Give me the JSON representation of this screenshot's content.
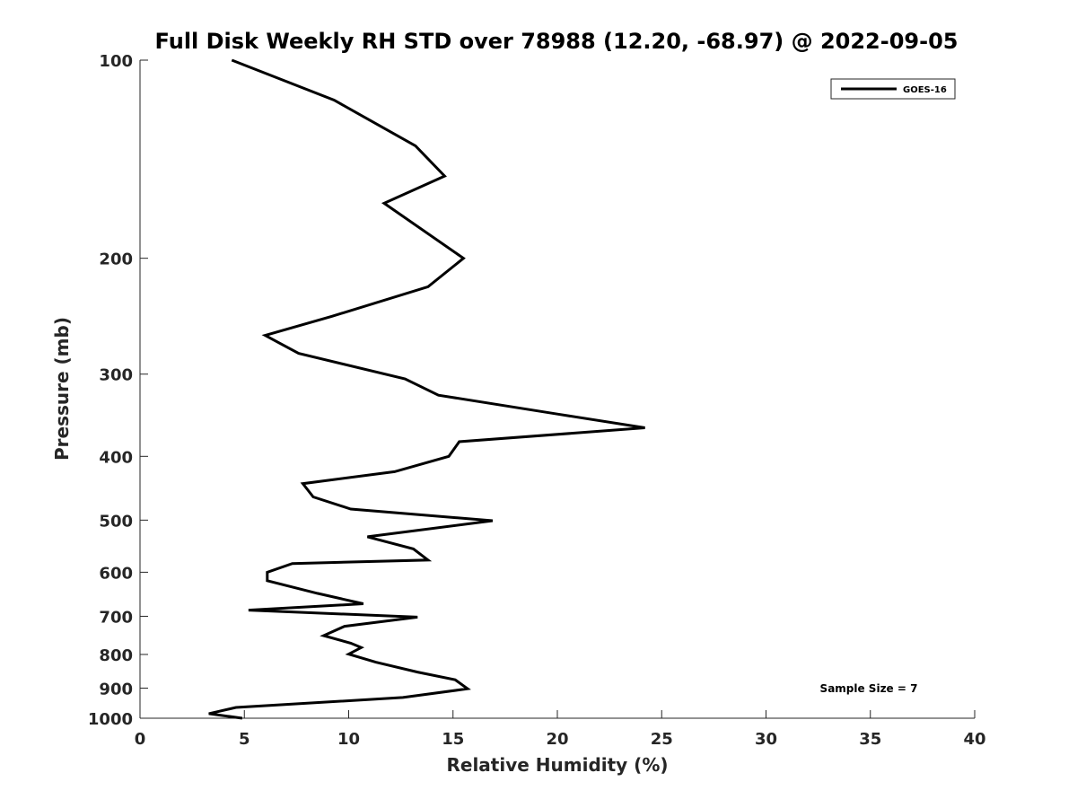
{
  "chart_data": {
    "type": "line",
    "title": "Full Disk Weekly RH STD over 78988 (12.20, -68.97) @ 2022-09-05",
    "xlabel": "Relative Humidity (%)",
    "ylabel": "Pressure (mb)",
    "xlim": [
      0,
      40
    ],
    "ylim": [
      100,
      1000
    ],
    "yscale": "log",
    "y_reversed": true,
    "grid": false,
    "legend_position": "top-right",
    "x_ticks": [
      "0",
      "5",
      "10",
      "15",
      "20",
      "25",
      "30",
      "35",
      "40"
    ],
    "y_ticks": [
      "100",
      "200",
      "300",
      "400",
      "500",
      "600",
      "700",
      "800",
      "900",
      "1000"
    ],
    "annotation": "Sample Size = 7",
    "series": [
      {
        "name": "GOES-16",
        "color": "#000000",
        "x": [
          4.4,
          9.3,
          13.2,
          14.6,
          11.7,
          15.5,
          13.8,
          9.2,
          6.0,
          7.6,
          12.7,
          14.3,
          20.0,
          24.2,
          15.3,
          14.8,
          12.2,
          7.8,
          8.3,
          10.1,
          16.9,
          10.9,
          13.1,
          13.8,
          7.3,
          6.1,
          6.1,
          8.5,
          10.7,
          5.2,
          13.3,
          9.8,
          8.8,
          10.1,
          10.6,
          10.0,
          11.3,
          13.3,
          15.1,
          15.7,
          12.6,
          4.6,
          3.3,
          4.9
        ],
        "y": [
          100,
          115,
          135,
          150,
          165,
          200,
          221,
          245,
          262,
          279,
          305,
          323,
          345,
          362,
          380,
          400,
          422,
          440,
          461,
          481,
          501,
          530,
          553,
          575,
          582,
          600,
          618,
          646,
          670,
          685,
          702,
          725,
          749,
          769,
          781,
          799,
          822,
          851,
          874,
          902,
          930,
          963,
          984,
          1000
        ]
      }
    ]
  }
}
